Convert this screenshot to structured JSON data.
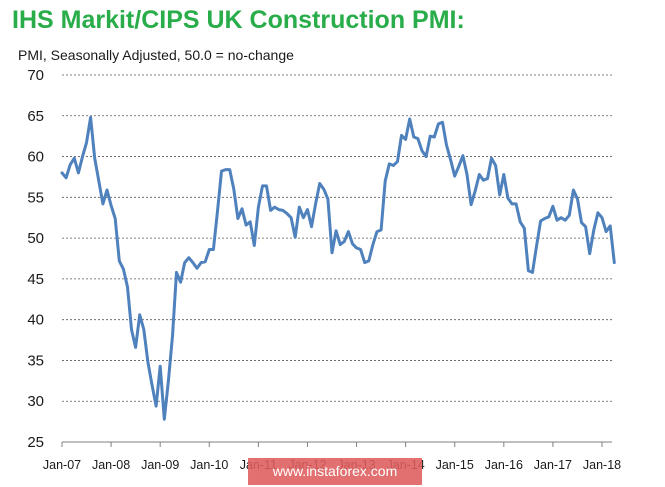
{
  "watermark": "www.instaforex.com",
  "chart_data": {
    "type": "line",
    "title": "IHS Markit/CIPS UK Construction PMI:",
    "subtitle": "PMI, Seasonally Adjusted, 50.0 = no-change",
    "xlabel": "",
    "ylabel": "",
    "ylim": [
      25,
      70
    ],
    "yticks": [
      25,
      30,
      35,
      40,
      45,
      50,
      55,
      60,
      65,
      70
    ],
    "xticks": [
      "Jan-07",
      "Jan-08",
      "Jan-09",
      "Jan-10",
      "Jan-11",
      "Jan-12",
      "Jan-13",
      "Jan-14",
      "Jan-15",
      "Jan-16",
      "Jan-17",
      "Jan-18"
    ],
    "grid": true,
    "legend": "none",
    "line_color": "#4f81bd",
    "series": [
      {
        "start": "Jan-07",
        "frequency": "monthly",
        "values": [
          58.0,
          57.4,
          59.0,
          59.8,
          58.0,
          60.0,
          61.7,
          64.8,
          59.8,
          57.0,
          54.2,
          55.9,
          54.0,
          52.4,
          47.2,
          46.2,
          44.0,
          38.8,
          36.6,
          40.6,
          38.8,
          34.8,
          32.0,
          29.4,
          34.3,
          27.8,
          32.5,
          38.0,
          45.8,
          44.6,
          47.0,
          47.6,
          47.0,
          46.3,
          47.0,
          47.1,
          48.6,
          48.6,
          53.3,
          58.2,
          58.4,
          58.4,
          56.0,
          52.4,
          53.6,
          51.6,
          52.0,
          49.1,
          53.8,
          56.4,
          56.4,
          53.4,
          53.8,
          53.5,
          53.4,
          53.0,
          52.5,
          50.1,
          53.8,
          52.5,
          53.5,
          51.4,
          54.2,
          56.7,
          56.0,
          54.8,
          48.2,
          50.9,
          49.2,
          49.6,
          50.8,
          49.3,
          48.8,
          48.6,
          47.0,
          47.2,
          49.2,
          50.8,
          51.0,
          57.0,
          59.1,
          58.9,
          59.4,
          62.6,
          62.1,
          64.6,
          62.4,
          62.2,
          60.7,
          60.0,
          62.5,
          62.4,
          64.0,
          64.2,
          61.4,
          59.6,
          57.6,
          58.8,
          60.1,
          57.8,
          54.1,
          55.8,
          57.8,
          57.1,
          57.3,
          59.8,
          58.9,
          55.3,
          57.8,
          54.9,
          54.2,
          54.2,
          52.0,
          51.2,
          46.0,
          45.8,
          49.0,
          52.1,
          52.4,
          52.6,
          53.9,
          52.2,
          52.5,
          52.2,
          52.8,
          55.9,
          54.8,
          51.9,
          51.4,
          48.1,
          51.0,
          53.1,
          52.5,
          50.8,
          51.5,
          47.0
        ]
      }
    ]
  }
}
